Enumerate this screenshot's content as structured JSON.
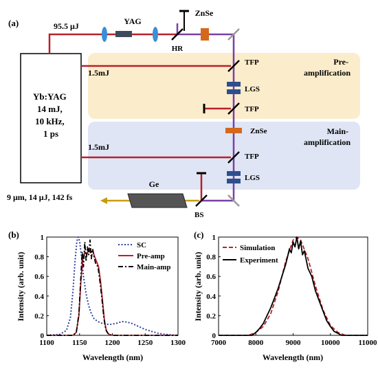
{
  "figure": {
    "panel_a": {
      "label": "(a)",
      "pulse_energy_top": "95.5 μJ",
      "yag_label": "YAG",
      "hr_label": "HR",
      "znse_top_label": "ZnSe",
      "laser_lines": [
        "Yb:YAG",
        "14 mJ,",
        "10 kHz,",
        "1 ps"
      ],
      "pump_energy_1": "1.5mJ",
      "pump_energy_2": "1.5mJ",
      "tfp_1": "TFP",
      "lgs_1": "LGS",
      "tfp_2": "TFP",
      "znse_mid_label": "ZnSe",
      "tfp_3": "TFP",
      "lgs_2": "LGS",
      "ge_label": "Ge",
      "bs_label": "BS",
      "output_label": "9 μm, 14 μJ, 142 fs",
      "stage_pre": [
        "Pre-",
        "amplification"
      ],
      "stage_main": [
        "Main-",
        "amplification"
      ],
      "colors": {
        "pump_beam": "#b8202a",
        "idler_beam": "#7a3fa5",
        "output_beam": "#c89b0f",
        "pre_stage_bg": "#fbeccb",
        "main_stage_bg": "#dfe5f4",
        "lens": "#3a8fd6",
        "crystal_lgs": "#2e4f8f",
        "znse": "#d4691c",
        "ge": "#555555"
      }
    }
  },
  "chart_data": [
    {
      "panel": "(b)",
      "type": "line",
      "xlabel": "Wavelength (nm)",
      "ylabel": "Intensity (arb. unit)",
      "xlim": [
        1100,
        1300
      ],
      "ylim": [
        0,
        1
      ],
      "xticks": [
        1100,
        1150,
        1200,
        1250,
        1300
      ],
      "yticks": [
        0,
        0.2,
        0.4,
        0.6,
        0.8,
        1
      ],
      "ytick_labels": [
        "0",
        "0.2",
        "0.4",
        "0.6",
        "0.8",
        "1"
      ],
      "legend": "top-right",
      "series": [
        {
          "name": "SC",
          "color": "#2b3f9e",
          "style": "dotted",
          "x": [
            1100,
            1120,
            1130,
            1136,
            1140,
            1143,
            1146,
            1148,
            1150,
            1153,
            1156,
            1160,
            1164,
            1168,
            1172,
            1178,
            1185,
            1195,
            1205,
            1215,
            1222,
            1230,
            1240,
            1250,
            1260,
            1270,
            1280,
            1290,
            1300
          ],
          "y": [
            0,
            0.01,
            0.05,
            0.18,
            0.45,
            0.75,
            0.96,
            1.0,
            0.96,
            0.8,
            0.6,
            0.42,
            0.3,
            0.22,
            0.17,
            0.14,
            0.12,
            0.11,
            0.12,
            0.14,
            0.135,
            0.12,
            0.09,
            0.06,
            0.04,
            0.02,
            0.01,
            0.005,
            0
          ]
        },
        {
          "name": "Pre-amp",
          "color": "#b8202a",
          "style": "solid",
          "x": [
            1100,
            1140,
            1145,
            1149,
            1152,
            1155,
            1158,
            1161,
            1164,
            1167,
            1170,
            1173,
            1176,
            1179,
            1182,
            1185,
            1188,
            1191,
            1195,
            1200,
            1300
          ],
          "y": [
            0,
            0,
            0.03,
            0.2,
            0.55,
            0.78,
            0.85,
            0.82,
            0.88,
            0.84,
            0.86,
            0.8,
            0.75,
            0.7,
            0.55,
            0.35,
            0.15,
            0.04,
            0.01,
            0,
            0
          ]
        },
        {
          "name": "Main-amp",
          "color": "#000000",
          "style": "dashdot",
          "x": [
            1100,
            1140,
            1145,
            1149,
            1152,
            1154,
            1156,
            1158,
            1160,
            1162,
            1164,
            1166,
            1168,
            1170,
            1172,
            1175,
            1178,
            1181,
            1184,
            1187,
            1190,
            1194,
            1200,
            1300
          ],
          "y": [
            0,
            0,
            0.03,
            0.22,
            0.6,
            0.85,
            0.7,
            0.95,
            0.75,
            0.9,
            0.82,
            0.97,
            0.78,
            0.88,
            0.8,
            0.72,
            0.7,
            0.55,
            0.38,
            0.18,
            0.06,
            0.01,
            0,
            0
          ]
        }
      ]
    },
    {
      "panel": "(c)",
      "type": "line",
      "xlabel": "Wavelength (nm)",
      "ylabel": "Intensity (arb. unit)",
      "xlim": [
        7000,
        11000
      ],
      "ylim": [
        0,
        1
      ],
      "xticks": [
        7000,
        8000,
        9000,
        10000,
        11000
      ],
      "yticks": [
        0,
        0.2,
        0.4,
        0.6,
        0.8,
        1
      ],
      "ytick_labels": [
        "0",
        "0.2",
        "0.4",
        "0.6",
        "0.8",
        "1"
      ],
      "legend": "top-left",
      "series": [
        {
          "name": "Simulation",
          "color": "#b8202a",
          "style": "dashed",
          "x": [
            7000,
            7800,
            8000,
            8200,
            8400,
            8600,
            8800,
            9000,
            9100,
            9200,
            9400,
            9600,
            9800,
            10000,
            10200,
            10400,
            11000
          ],
          "y": [
            0,
            0,
            0.03,
            0.09,
            0.22,
            0.45,
            0.75,
            0.97,
            1.0,
            0.97,
            0.78,
            0.5,
            0.26,
            0.1,
            0.03,
            0,
            0
          ]
        },
        {
          "name": "Experiment",
          "color": "#000000",
          "style": "solid",
          "x": [
            7000,
            7900,
            8000,
            8100,
            8200,
            8300,
            8400,
            8500,
            8600,
            8700,
            8800,
            8850,
            8900,
            8950,
            9000,
            9050,
            9100,
            9150,
            9200,
            9250,
            9300,
            9400,
            9500,
            9600,
            9700,
            9800,
            9900,
            10000,
            10100,
            10200,
            10300,
            11000
          ],
          "y": [
            0,
            0,
            0.03,
            0.07,
            0.12,
            0.2,
            0.28,
            0.38,
            0.48,
            0.6,
            0.72,
            0.8,
            0.88,
            0.84,
            0.95,
            0.9,
            1.0,
            0.88,
            0.96,
            0.82,
            0.86,
            0.68,
            0.6,
            0.45,
            0.35,
            0.25,
            0.15,
            0.09,
            0.04,
            0.02,
            0,
            0
          ]
        }
      ]
    }
  ]
}
